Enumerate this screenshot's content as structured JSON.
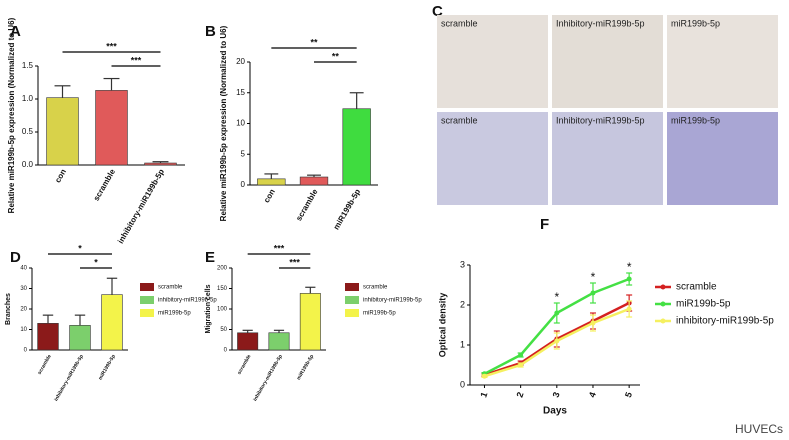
{
  "chart_data": [
    {
      "type": "bar",
      "panel": "A",
      "ylabel": "Relative miR199b-5p expression (Normalized to U6)",
      "categories": [
        "con",
        "scramble",
        "inhibitory-miR199b-5p"
      ],
      "values": [
        1.02,
        1.13,
        0.03
      ],
      "errors": [
        0.18,
        0.18,
        0.02
      ],
      "colors": [
        "#d8d24a",
        "#e05a5a",
        "#e05a5a"
      ],
      "ylim": [
        0,
        1.5
      ],
      "yticks": [
        {
          "value": 0,
          "label": "0.0"
        },
        {
          "value": 0.5,
          "label": "0.5"
        },
        {
          "value": 1,
          "label": "1.0"
        },
        {
          "value": 1.5,
          "label": "1.5"
        }
      ],
      "significance": [
        "***",
        "***"
      ]
    },
    {
      "type": "bar",
      "panel": "B",
      "ylabel": "Relative miR199b-5p expression (Normalized to U6)",
      "categories": [
        "con",
        "scramble",
        "miR199b-5p"
      ],
      "values": [
        1.0,
        1.3,
        12.4
      ],
      "errors": [
        0.8,
        0.3,
        2.6
      ],
      "colors": [
        "#d8d24a",
        "#e05a5a",
        "#3fdc3f"
      ],
      "ylim": [
        0,
        20
      ],
      "yticks": [
        0,
        5,
        10,
        15,
        20
      ],
      "significance": [
        "**",
        "**"
      ]
    },
    {
      "type": "bar",
      "panel": "D",
      "ylabel": "Branches",
      "legend": true,
      "categories": [
        "scramble",
        "inhibitory-miR199b-5p",
        "miR199b-5p"
      ],
      "values": [
        13,
        12,
        27
      ],
      "errors": [
        4,
        5,
        8
      ],
      "colors": [
        "#8b1a1a",
        "#7ccf6c",
        "#f3f34a"
      ],
      "ylim": [
        0,
        40
      ],
      "yticks": [
        0,
        10,
        20,
        30,
        40
      ],
      "significance": [
        "*",
        "*"
      ]
    },
    {
      "type": "bar",
      "panel": "E",
      "ylabel": "Migration cells",
      "legend": true,
      "categories": [
        "scramble",
        "inhibitory-miR199b-5p",
        "miR199b-5p"
      ],
      "values": [
        42,
        42,
        138
      ],
      "errors": [
        6,
        6,
        15
      ],
      "colors": [
        "#8b1a1a",
        "#7ccf6c",
        "#f3f34a"
      ],
      "ylim": [
        0,
        200
      ],
      "yticks": [
        0,
        50,
        100,
        150,
        200
      ],
      "significance": [
        "***",
        "***"
      ]
    },
    {
      "type": "line",
      "panel": "F",
      "xlabel": "Days",
      "ylabel": "Optical density",
      "x": [
        1,
        2,
        3,
        4,
        5
      ],
      "series": [
        {
          "name": "scramble",
          "color": "#d42020",
          "values": [
            0.25,
            0.55,
            1.15,
            1.6,
            2.05
          ],
          "errors": [
            0.03,
            0.05,
            0.2,
            0.2,
            0.2
          ]
        },
        {
          "name": "miR199b-5p",
          "color": "#44e044",
          "values": [
            0.28,
            0.75,
            1.8,
            2.3,
            2.65
          ],
          "errors": [
            0.03,
            0.05,
            0.25,
            0.25,
            0.15
          ]
        },
        {
          "name": "inhibitory-miR199b-5p",
          "color": "#f5f060",
          "values": [
            0.22,
            0.5,
            1.1,
            1.55,
            1.9
          ],
          "errors": [
            0.03,
            0.05,
            0.2,
            0.2,
            0.2
          ]
        }
      ],
      "xlim": [
        0.6,
        5.3
      ],
      "xticks": [
        1,
        2,
        3,
        4,
        5
      ],
      "ylim": [
        0,
        3
      ],
      "yticks": [
        0,
        1,
        2,
        3
      ],
      "annotations": [
        "*",
        "*",
        "*"
      ],
      "note": "HUVECs"
    }
  ],
  "panel_c": {
    "panel": "C",
    "top_row": [
      "scramble",
      "Inhibitory-miR199b-5p",
      "miR199b-5p"
    ],
    "bottom_row": [
      "scramble",
      "Inhibitory-miR199b-5p",
      "miR199b-5p"
    ]
  }
}
